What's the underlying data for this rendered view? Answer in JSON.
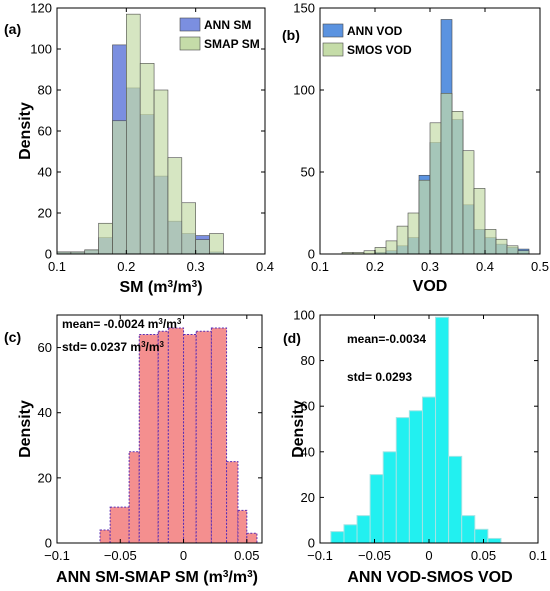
{
  "chart_data": [
    {
      "id": "a",
      "panel_label": "(a)",
      "type": "histogram",
      "xlabel": "SM (m",
      "xlabel_sup": "3",
      "xlabel_mid": "/m",
      "xlabel_sup2": "3",
      "xlabel_end": ")",
      "ylabel": "Density",
      "xlim": [
        0.1,
        0.4
      ],
      "ylim": [
        0,
        120
      ],
      "xticks": [
        0.1,
        0.2,
        0.3,
        0.4
      ],
      "xtick_labels": [
        "0.1",
        "0.2",
        "0.3",
        "0.4"
      ],
      "yticks": [
        0,
        20,
        40,
        60,
        80,
        100,
        120
      ],
      "ytick_labels": [
        "0",
        "20",
        "40",
        "60",
        "80",
        "100",
        "120"
      ],
      "legend_position": "top-right",
      "series": [
        {
          "name": "ANN SM",
          "color": "#7b8fe0",
          "bins": [
            [
              0.1,
              0.12,
              1
            ],
            [
              0.12,
              0.14,
              1
            ],
            [
              0.14,
              0.16,
              2
            ],
            [
              0.16,
              0.18,
              8
            ],
            [
              0.18,
              0.2,
              102
            ],
            [
              0.2,
              0.22,
              81
            ],
            [
              0.22,
              0.24,
              68
            ],
            [
              0.24,
              0.26,
              38
            ],
            [
              0.26,
              0.28,
              16
            ],
            [
              0.28,
              0.3,
              10
            ],
            [
              0.3,
              0.32,
              9
            ],
            [
              0.32,
              0.34,
              1
            ]
          ]
        },
        {
          "name": "SMAP SM",
          "color": "#c5dca8",
          "bins": [
            [
              0.1,
              0.12,
              1
            ],
            [
              0.12,
              0.14,
              1
            ],
            [
              0.14,
              0.16,
              2
            ],
            [
              0.16,
              0.18,
              15
            ],
            [
              0.18,
              0.2,
              65
            ],
            [
              0.2,
              0.22,
              117
            ],
            [
              0.22,
              0.24,
              93
            ],
            [
              0.24,
              0.26,
              80
            ],
            [
              0.26,
              0.28,
              47
            ],
            [
              0.28,
              0.3,
              25
            ],
            [
              0.3,
              0.32,
              7
            ],
            [
              0.32,
              0.34,
              10
            ]
          ]
        }
      ]
    },
    {
      "id": "b",
      "panel_label": "(b)",
      "type": "histogram",
      "xlabel": "VOD",
      "ylabel": "",
      "xlim": [
        0.1,
        0.5
      ],
      "ylim": [
        0,
        150
      ],
      "xticks": [
        0.1,
        0.2,
        0.3,
        0.4,
        0.5
      ],
      "xtick_labels": [
        "0.1",
        "0.2",
        "0.3",
        "0.4",
        "0.5"
      ],
      "yticks": [
        0,
        50,
        100,
        150
      ],
      "ytick_labels": [
        "0",
        "50",
        "100",
        "150"
      ],
      "legend_position": "top-left",
      "series": [
        {
          "name": "ANN VOD",
          "color": "#5b93e0",
          "bins": [
            [
              0.2,
              0.22,
              1
            ],
            [
              0.22,
              0.24,
              2
            ],
            [
              0.24,
              0.26,
              5
            ],
            [
              0.26,
              0.28,
              10
            ],
            [
              0.28,
              0.3,
              48
            ],
            [
              0.3,
              0.32,
              68
            ],
            [
              0.32,
              0.34,
              143
            ],
            [
              0.34,
              0.36,
              82
            ],
            [
              0.36,
              0.38,
              30
            ],
            [
              0.38,
              0.4,
              15
            ],
            [
              0.4,
              0.42,
              10
            ],
            [
              0.42,
              0.44,
              6
            ],
            [
              0.44,
              0.46,
              4
            ],
            [
              0.46,
              0.48,
              3
            ]
          ]
        },
        {
          "name": "SMOS VOD",
          "color": "#c5dca8",
          "bins": [
            [
              0.14,
              0.16,
              1
            ],
            [
              0.16,
              0.18,
              1
            ],
            [
              0.18,
              0.2,
              2
            ],
            [
              0.2,
              0.22,
              4
            ],
            [
              0.22,
              0.24,
              8
            ],
            [
              0.24,
              0.26,
              17
            ],
            [
              0.26,
              0.28,
              25
            ],
            [
              0.28,
              0.3,
              45
            ],
            [
              0.3,
              0.32,
              80
            ],
            [
              0.32,
              0.34,
              98
            ],
            [
              0.34,
              0.36,
              87
            ],
            [
              0.36,
              0.38,
              63
            ],
            [
              0.38,
              0.4,
              40
            ],
            [
              0.4,
              0.42,
              15
            ],
            [
              0.42,
              0.44,
              9
            ],
            [
              0.44,
              0.46,
              5
            ],
            [
              0.46,
              0.48,
              2
            ]
          ]
        }
      ]
    },
    {
      "id": "c",
      "panel_label": "(c)",
      "type": "histogram",
      "xlabel": "ANN SM-SMAP SM (m",
      "xlabel_sup": "3",
      "xlabel_mid": "/m",
      "xlabel_sup2": "3",
      "xlabel_end": ")",
      "ylabel": "Density",
      "xlim": [
        -0.1,
        0.062
      ],
      "ylim": [
        0,
        70
      ],
      "xticks": [
        -0.1,
        -0.05,
        0,
        0.05
      ],
      "xtick_labels": [
        "−0.1",
        "−0.05",
        "0",
        "0.05"
      ],
      "yticks": [
        0,
        20,
        40,
        60
      ],
      "ytick_labels": [
        "0",
        "20",
        "40",
        "60"
      ],
      "annotations": [
        {
          "text": "mean= -0.0024 m",
          "sup": "3",
          "mid": "/m",
          "sup2": "3"
        },
        {
          "text": "std=  0.0237 m",
          "sup": "3",
          "mid": "/m",
          "sup2": "3"
        }
      ],
      "series": [
        {
          "name": "",
          "color": "#f48f8f",
          "edge_color": "#5a2db4",
          "bins": [
            [
              -0.066,
              -0.058,
              4
            ],
            [
              -0.058,
              -0.043,
              11
            ],
            [
              -0.043,
              -0.035,
              28
            ],
            [
              -0.035,
              -0.02,
              64
            ],
            [
              -0.02,
              -0.012,
              65
            ],
            [
              -0.012,
              0.0,
              66
            ],
            [
              0.0,
              0.01,
              64
            ],
            [
              0.01,
              0.022,
              65
            ],
            [
              0.022,
              0.034,
              66
            ],
            [
              0.034,
              0.043,
              25
            ],
            [
              0.043,
              0.05,
              10
            ],
            [
              0.05,
              0.058,
              3
            ]
          ]
        }
      ]
    },
    {
      "id": "d",
      "panel_label": "(d)",
      "type": "histogram",
      "xlabel": "ANN VOD-SMOS VOD",
      "ylabel": "Density",
      "xlim": [
        -0.1,
        0.1
      ],
      "ylim": [
        0,
        100
      ],
      "xticks": [
        -0.1,
        -0.05,
        0,
        0.05,
        0.1
      ],
      "xtick_labels": [
        "−0.1",
        "−0.05",
        "0",
        "0.05",
        "0.1"
      ],
      "yticks": [
        0,
        20,
        40,
        60,
        80,
        100
      ],
      "ytick_labels": [
        "0",
        "20",
        "40",
        "60",
        "80",
        "100"
      ],
      "annotations": [
        {
          "text": "mean=-0.0034"
        },
        {
          "text": "std= 0.0293"
        }
      ],
      "series": [
        {
          "name": "",
          "color": "#22f0f0",
          "edge_color": "#a3e4e4",
          "bins": [
            [
              -0.09,
              -0.078,
              5
            ],
            [
              -0.078,
              -0.066,
              8
            ],
            [
              -0.066,
              -0.054,
              12
            ],
            [
              -0.054,
              -0.042,
              30
            ],
            [
              -0.042,
              -0.03,
              40
            ],
            [
              -0.03,
              -0.018,
              55
            ],
            [
              -0.018,
              -0.006,
              58
            ],
            [
              -0.006,
              0.006,
              64
            ],
            [
              0.006,
              0.018,
              99
            ],
            [
              0.018,
              0.03,
              38
            ],
            [
              0.03,
              0.042,
              12
            ],
            [
              0.042,
              0.054,
              6
            ],
            [
              0.054,
              0.066,
              2
            ]
          ]
        }
      ]
    }
  ]
}
